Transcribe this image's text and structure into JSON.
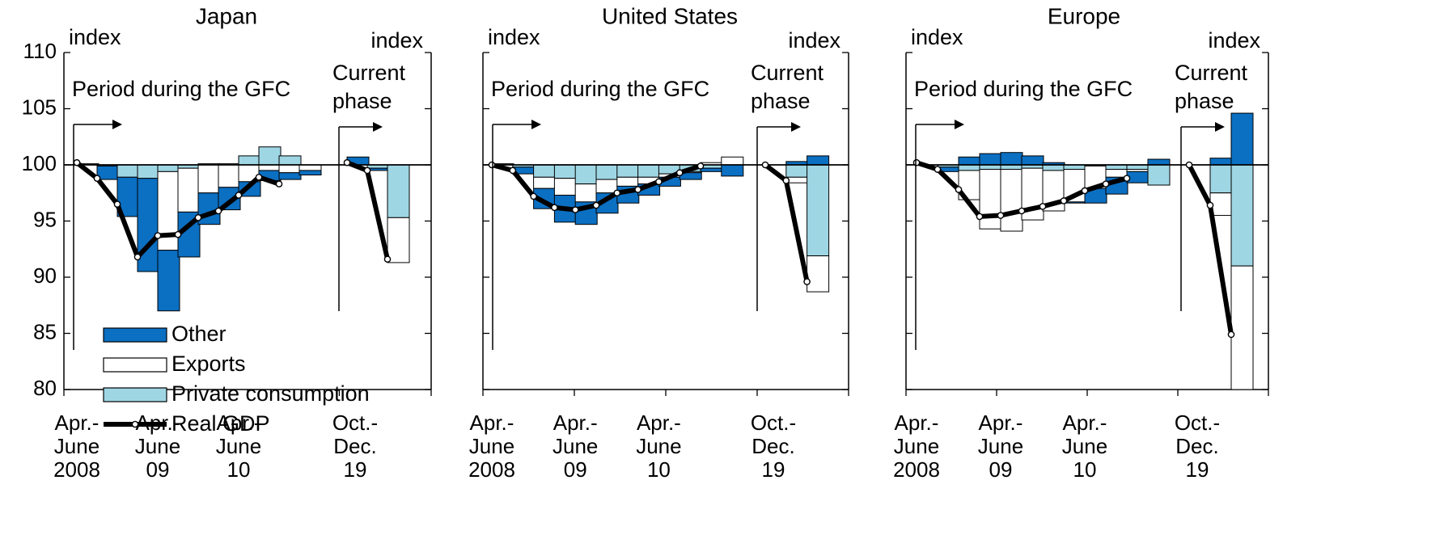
{
  "colors": {
    "other": "#0b6fc2",
    "exports": "#ffffff",
    "private_consumption": "#9fd6e4",
    "real_gdp": "#000000",
    "bar_edge": "#000000"
  },
  "legend": [
    {
      "label": "Other",
      "key": "other"
    },
    {
      "label": "Exports",
      "key": "exports"
    },
    {
      "label": "Private consumption",
      "key": "private_consumption"
    },
    {
      "label": "Real GDP",
      "key": "real_gdp"
    }
  ],
  "y_axis": {
    "min": 80,
    "max": 110,
    "ticks": [
      "80",
      "85",
      "90",
      "95",
      "100",
      "105",
      "110"
    ]
  },
  "x_tick_labels": [
    {
      "line1": "Apr.-",
      "line2": "June",
      "line3": "2008"
    },
    {
      "line1": "Apr.-",
      "line2": "June",
      "line3": "09"
    },
    {
      "line1": "Apr.-",
      "line2": "June",
      "line3": "10"
    },
    {
      "line1": "Oct.-",
      "line2": "Dec.",
      "line3": "19"
    }
  ],
  "annotations": {
    "index_left": "index",
    "index_right": "index",
    "gfc": "Period during the GFC",
    "current_line1": "Current",
    "current_line2": "phase"
  },
  "chart_data": [
    {
      "type": "bar",
      "title": "Japan",
      "ylim": [
        80,
        110
      ],
      "gfc_periods": [
        "2008Q2",
        "2008Q3",
        "2008Q4",
        "2009Q1",
        "2009Q2",
        "2009Q3",
        "2009Q4",
        "2010Q1",
        "2010Q2",
        "2010Q3",
        "2010Q4",
        "2011Q1"
      ],
      "gfc": {
        "real_gdp": [
          100.2,
          98.8,
          96.5,
          91.8,
          93.7,
          93.8,
          95.3,
          95.9,
          97.3,
          98.9,
          98.3,
          null
        ],
        "other": [
          0.1,
          -1.2,
          -3.5,
          -8.3,
          -5.4,
          -4.0,
          -2.8,
          -2.0,
          -1.3,
          -0.9,
          -0.6,
          -0.4
        ],
        "exports": [
          0.0,
          0.0,
          0.0,
          0.0,
          -7.0,
          -3.9,
          -2.5,
          -2.0,
          -1.5,
          -0.5,
          -0.7,
          -0.5
        ],
        "private_consumption": [
          0.0,
          -0.1,
          -1.1,
          -1.2,
          -0.6,
          -0.3,
          0.1,
          0.1,
          0.8,
          1.6,
          0.8,
          0.0
        ]
      },
      "current_periods": [
        "2019Q4",
        "2020Q1",
        "2020Q2"
      ],
      "current": {
        "real_gdp": [
          100.2,
          99.5,
          91.6
        ],
        "other": [
          0.7,
          -0.2,
          0.0
        ],
        "exports": [
          0.0,
          0.0,
          -4.0
        ],
        "private_consumption": [
          0.0,
          -0.3,
          -4.7
        ]
      }
    },
    {
      "type": "bar",
      "title": "United States",
      "ylim": [
        80,
        110
      ],
      "gfc_periods": [
        "2008Q2",
        "2008Q3",
        "2008Q4",
        "2009Q1",
        "2009Q2",
        "2009Q3",
        "2009Q4",
        "2010Q1",
        "2010Q2",
        "2010Q3",
        "2010Q4",
        "2011Q1"
      ],
      "gfc": {
        "real_gdp": [
          100.0,
          99.5,
          97.2,
          96.2,
          96.0,
          96.4,
          97.5,
          97.8,
          98.5,
          99.3,
          99.9,
          null
        ],
        "other": [
          0.1,
          -0.6,
          -1.8,
          -2.4,
          -2.0,
          -1.8,
          -1.5,
          -1.0,
          -0.8,
          -0.6,
          -0.3,
          -1.0
        ],
        "exports": [
          0.0,
          0.0,
          -1.0,
          -1.5,
          -1.6,
          -1.2,
          -0.8,
          -0.6,
          -0.3,
          -0.1,
          0.2,
          0.7
        ],
        "private_consumption": [
          0.0,
          -0.2,
          -1.1,
          -1.2,
          -1.7,
          -1.3,
          -1.1,
          -1.1,
          -0.8,
          -0.6,
          -0.3,
          0.0
        ]
      },
      "current_periods": [
        "2019Q4",
        "2020Q1",
        "2020Q2"
      ],
      "current": {
        "real_gdp": [
          100.0,
          98.6,
          89.6
        ],
        "other": [
          0.0,
          0.3,
          0.8
        ],
        "exports": [
          0.0,
          -0.5,
          -3.2
        ],
        "private_consumption": [
          0.0,
          -1.1,
          -8.1
        ]
      }
    },
    {
      "type": "bar",
      "title": "Europe",
      "ylim": [
        80,
        110
      ],
      "gfc_periods": [
        "2008Q2",
        "2008Q3",
        "2008Q4",
        "2009Q1",
        "2009Q2",
        "2009Q3",
        "2009Q4",
        "2010Q1",
        "2010Q2",
        "2010Q3",
        "2010Q4",
        "2011Q1"
      ],
      "gfc": {
        "real_gdp": [
          100.2,
          99.6,
          97.8,
          95.4,
          95.5,
          95.9,
          96.3,
          96.8,
          97.7,
          98.3,
          98.8,
          null
        ],
        "other": [
          0.0,
          -0.4,
          0.7,
          1.0,
          1.1,
          0.8,
          0.2,
          -0.1,
          -1.3,
          -1.5,
          -1.0,
          0.5
        ],
        "exports": [
          0.0,
          0.0,
          -2.6,
          -5.3,
          -5.5,
          -4.6,
          -3.6,
          -2.9,
          -2.0,
          -0.7,
          -0.2,
          0.0
        ],
        "private_consumption": [
          0.0,
          -0.2,
          -0.5,
          -0.4,
          -0.4,
          -0.3,
          -0.5,
          -0.4,
          -0.1,
          -0.4,
          -0.4,
          -1.8
        ]
      },
      "current_periods": [
        "2019Q4",
        "2020Q1",
        "2020Q2"
      ],
      "current": {
        "real_gdp": [
          100.0,
          96.4,
          84.9
        ],
        "other": [
          0.0,
          0.6,
          4.6
        ],
        "exports": [
          0.0,
          -2.0,
          -11.0
        ],
        "private_consumption": [
          0.0,
          -2.5,
          -9.0
        ]
      }
    }
  ]
}
